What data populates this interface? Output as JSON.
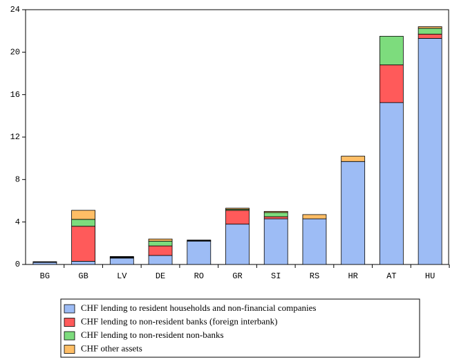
{
  "chart_data": {
    "type": "stacked_bar",
    "categories": [
      "BG",
      "GB",
      "LV",
      "DE",
      "RO",
      "GR",
      "SI",
      "RS",
      "HR",
      "AT",
      "HU"
    ],
    "series": [
      {
        "name": "CHF lending to resident households and non-financial companies",
        "color": "#9dbcf5",
        "values": [
          0.2,
          0.3,
          0.6,
          0.85,
          2.2,
          3.8,
          4.3,
          4.3,
          9.7,
          15.25,
          21.3
        ]
      },
      {
        "name": "CHF lending to non-resident banks (foreign interbank)",
        "color": "#ff5a5a",
        "values": [
          0.02,
          3.3,
          0.05,
          0.9,
          0.03,
          1.3,
          0.2,
          0,
          0,
          3.55,
          0.4
        ]
      },
      {
        "name": "CHF lending to non-resident non-banks",
        "color": "#7ddc7d",
        "values": [
          0.02,
          0.65,
          0.05,
          0.45,
          0.03,
          0.1,
          0.4,
          0,
          0,
          2.7,
          0.55
        ]
      },
      {
        "name": "CHF other assets",
        "color": "#ffbe66",
        "values": [
          0.02,
          0.85,
          0.05,
          0.2,
          0.04,
          0.1,
          0.1,
          0.4,
          0.5,
          0,
          0.15
        ]
      }
    ],
    "ylim": [
      0,
      24
    ],
    "yticks": [
      0,
      4,
      8,
      12,
      16,
      20,
      24
    ]
  }
}
